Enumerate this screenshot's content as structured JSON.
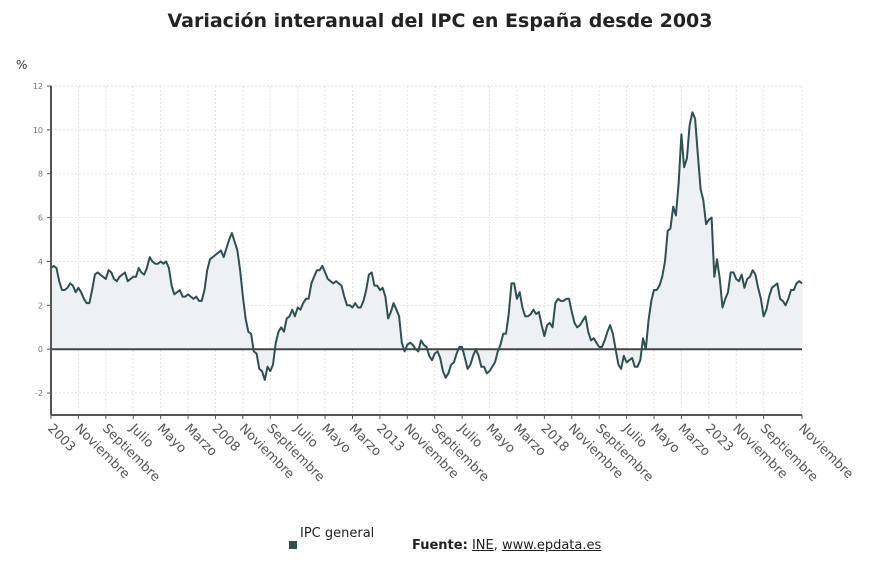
{
  "title": "Variación interanual del IPC en España desde 2003",
  "legend": {
    "label": "IPC general"
  },
  "source": {
    "prefix": "Fuente:",
    "link1": "INE",
    "sep": ",",
    "link2": "www.epdata.es"
  },
  "chart_data": {
    "type": "area",
    "title": "Variación interanual del IPC en España desde 2003",
    "ylabel": "%",
    "xlabel": "",
    "ylim": [
      -3,
      12
    ],
    "yticks": [
      -2,
      0,
      2,
      4,
      6,
      8,
      10,
      12
    ],
    "grid": true,
    "start": "2003-01",
    "x_tick_labels": [
      {
        "month": 0,
        "label": "2003"
      },
      {
        "month": 10,
        "label": "Noviembre"
      },
      {
        "month": 20,
        "label": "Septiembre"
      },
      {
        "month": 30,
        "label": "Julio"
      },
      {
        "month": 40,
        "label": "Mayo"
      },
      {
        "month": 50,
        "label": "Marzo"
      },
      {
        "month": 60,
        "label": "2008"
      },
      {
        "month": 70,
        "label": "Noviembre"
      },
      {
        "month": 80,
        "label": "Septiembre"
      },
      {
        "month": 90,
        "label": "Julio"
      },
      {
        "month": 100,
        "label": "Mayo"
      },
      {
        "month": 110,
        "label": "Marzo"
      },
      {
        "month": 120,
        "label": "2013"
      },
      {
        "month": 130,
        "label": "Noviembre"
      },
      {
        "month": 140,
        "label": "Septiembre"
      },
      {
        "month": 150,
        "label": "Julio"
      },
      {
        "month": 160,
        "label": "Mayo"
      },
      {
        "month": 170,
        "label": "Marzo"
      },
      {
        "month": 180,
        "label": "2018"
      },
      {
        "month": 190,
        "label": "Noviembre"
      },
      {
        "month": 200,
        "label": "Septiembre"
      },
      {
        "month": 210,
        "label": "Julio"
      },
      {
        "month": 220,
        "label": "Mayo"
      },
      {
        "month": 230,
        "label": "Marzo"
      },
      {
        "month": 240,
        "label": "2023"
      },
      {
        "month": 250,
        "label": "Noviembre"
      },
      {
        "month": 260,
        "label": "Septiembre"
      },
      {
        "month": 274,
        "label": "Noviembre"
      }
    ],
    "series": [
      {
        "name": "IPC general",
        "color": "#2f4f52",
        "fill": "#eef1f3",
        "values": [
          3.7,
          3.8,
          3.7,
          3.1,
          2.7,
          2.7,
          2.8,
          3.0,
          2.9,
          2.6,
          2.8,
          2.6,
          2.3,
          2.1,
          2.1,
          2.7,
          3.4,
          3.5,
          3.4,
          3.3,
          3.2,
          3.6,
          3.5,
          3.2,
          3.1,
          3.3,
          3.4,
          3.5,
          3.1,
          3.2,
          3.3,
          3.3,
          3.7,
          3.5,
          3.4,
          3.7,
          4.2,
          4.0,
          3.9,
          3.9,
          4.0,
          3.9,
          4.0,
          3.7,
          2.9,
          2.5,
          2.6,
          2.7,
          2.4,
          2.4,
          2.5,
          2.4,
          2.3,
          2.4,
          2.2,
          2.2,
          2.7,
          3.6,
          4.1,
          4.2,
          4.3,
          4.4,
          4.5,
          4.2,
          4.6,
          5.0,
          5.3,
          4.9,
          4.5,
          3.6,
          2.4,
          1.4,
          0.8,
          0.7,
          -0.1,
          -0.2,
          -0.9,
          -1.0,
          -1.4,
          -0.8,
          -1.0,
          -0.7,
          0.3,
          0.8,
          1.0,
          0.8,
          1.4,
          1.5,
          1.8,
          1.5,
          1.9,
          1.8,
          2.1,
          2.3,
          2.3,
          3.0,
          3.3,
          3.6,
          3.6,
          3.8,
          3.5,
          3.2,
          3.1,
          3.0,
          3.1,
          3.0,
          2.9,
          2.4,
          2.0,
          2.0,
          1.9,
          2.1,
          1.9,
          1.9,
          2.2,
          2.7,
          3.4,
          3.5,
          2.9,
          2.9,
          2.7,
          2.8,
          2.4,
          1.4,
          1.7,
          2.1,
          1.8,
          1.5,
          0.3,
          -0.1,
          0.2,
          0.3,
          0.2,
          0.0,
          -0.1,
          0.4,
          0.2,
          0.1,
          -0.3,
          -0.5,
          -0.2,
          -0.1,
          -0.4,
          -1.0,
          -1.3,
          -1.1,
          -0.7,
          -0.6,
          -0.2,
          0.1,
          0.1,
          -0.4,
          -0.9,
          -0.7,
          -0.3,
          0.0,
          -0.3,
          -0.8,
          -0.8,
          -1.1,
          -1.0,
          -0.8,
          -0.6,
          -0.1,
          0.2,
          0.7,
          0.7,
          1.6,
          3.0,
          3.0,
          2.3,
          2.6,
          1.9,
          1.5,
          1.5,
          1.6,
          1.8,
          1.6,
          1.7,
          1.1,
          0.6,
          1.1,
          1.2,
          1.0,
          2.1,
          2.3,
          2.2,
          2.2,
          2.3,
          2.3,
          1.7,
          1.2,
          1.0,
          1.1,
          1.3,
          1.5,
          0.8,
          0.4,
          0.5,
          0.3,
          0.1,
          0.1,
          0.4,
          0.8,
          1.1,
          0.7,
          0.0,
          -0.7,
          -0.9,
          -0.3,
          -0.6,
          -0.5,
          -0.4,
          -0.8,
          -0.8,
          -0.5,
          0.5,
          0.0,
          1.3,
          2.2,
          2.7,
          2.7,
          2.9,
          3.3,
          4.0,
          5.4,
          5.5,
          6.5,
          6.1,
          7.6,
          9.8,
          8.3,
          8.7,
          10.2,
          10.8,
          10.5,
          8.9,
          7.3,
          6.8,
          5.7,
          5.9,
          6.0,
          3.3,
          4.1,
          3.2,
          1.9,
          2.3,
          2.6,
          3.5,
          3.5,
          3.2,
          3.1,
          3.4,
          2.8,
          3.2,
          3.3,
          3.6,
          3.4,
          2.8,
          2.3,
          1.5,
          1.8,
          2.4,
          2.8,
          2.9,
          3.0,
          2.3,
          2.2,
          2.0,
          2.3,
          2.7,
          2.7,
          3.0,
          3.1,
          3.0
        ]
      }
    ]
  }
}
